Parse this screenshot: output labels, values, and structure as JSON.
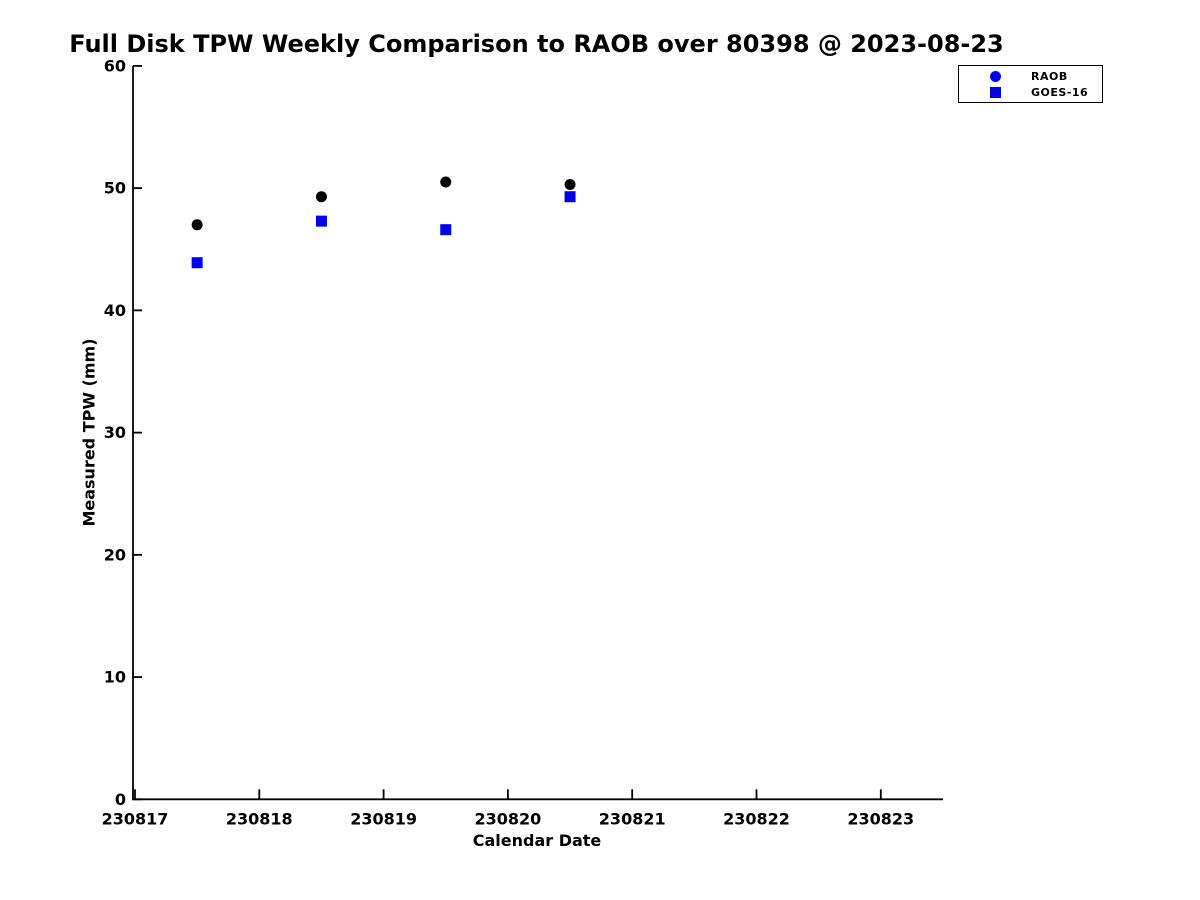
{
  "title": "Full Disk TPW Weekly Comparison to RAOB over 80398 @ 2023-08-23",
  "chart_data": {
    "type": "scatter",
    "title": "Full Disk TPW Weekly Comparison to RAOB over 80398 @ 2023-08-23",
    "xlabel": "Calendar Date",
    "ylabel": "Measured TPW (mm)",
    "x": [
      230817.5,
      230818.5,
      230819.5,
      230820.5
    ],
    "series": [
      {
        "name": "RAOB",
        "marker": "circle",
        "marker_color": "#000000",
        "legend_marker_color": "#0000EE",
        "values": [
          47.0,
          49.3,
          50.5,
          50.3
        ]
      },
      {
        "name": "GOES-16",
        "marker": "square",
        "marker_color": "#0000EE",
        "legend_marker_color": "#0000EE",
        "values": [
          43.9,
          47.3,
          46.6,
          49.3
        ]
      }
    ],
    "xticks": [
      230817,
      230818,
      230819,
      230820,
      230821,
      230822,
      230823
    ],
    "yticks": [
      0,
      10,
      20,
      30,
      40,
      50,
      60
    ],
    "xlim": [
      230816.98,
      230823.49
    ],
    "ylim": [
      0,
      60
    ],
    "grid": false,
    "legend_position": "outside-top-right",
    "axis_color": "#000000",
    "background_color": "#ffffff"
  },
  "legend": {
    "items": [
      {
        "label": "RAOB"
      },
      {
        "label": "GOES-16"
      }
    ]
  }
}
